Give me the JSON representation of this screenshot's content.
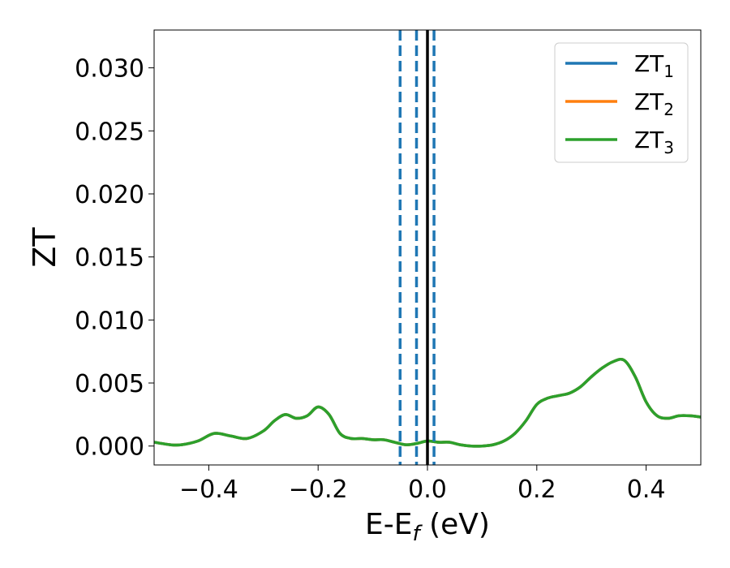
{
  "chart_data": {
    "type": "line",
    "xlabel": "E-E",
    "xlabel_sub": "f",
    "xlabel_unit": " (eV)",
    "ylabel": "ZT",
    "xlim": [
      -0.5,
      0.5
    ],
    "ylim": [
      -0.0015,
      0.033
    ],
    "xticks": [
      -0.4,
      -0.2,
      0.0,
      0.2,
      0.4
    ],
    "xtick_labels": [
      "−0.4",
      "−0.2",
      "0.0",
      "0.2",
      "0.4"
    ],
    "yticks": [
      0.0,
      0.005,
      0.01,
      0.015,
      0.02,
      0.025,
      0.03
    ],
    "ytick_labels": [
      "0.000",
      "0.005",
      "0.010",
      "0.015",
      "0.020",
      "0.025",
      "0.030"
    ],
    "grid": false,
    "legend_position": "top-right",
    "vlines": [
      {
        "x": -0.05,
        "style": "dashed",
        "color": "#1f77b4"
      },
      {
        "x": -0.02,
        "style": "dashed",
        "color": "#1f77b4"
      },
      {
        "x": 0.0,
        "style": "solid",
        "color": "#000000"
      },
      {
        "x": 0.012,
        "style": "dashed",
        "color": "#1f77b4"
      }
    ],
    "series": [
      {
        "name": "ZT",
        "sub": "1",
        "color": "#1f77b4",
        "x": [
          -0.5,
          -0.47,
          -0.45,
          -0.42,
          -0.39,
          -0.36,
          -0.33,
          -0.3,
          -0.28,
          -0.26,
          -0.24,
          -0.22,
          -0.2,
          -0.18,
          -0.16,
          -0.14,
          -0.12,
          -0.1,
          -0.08,
          -0.06,
          -0.04,
          -0.02,
          0.0,
          0.02,
          0.04,
          0.06,
          0.08,
          0.1,
          0.12,
          0.14,
          0.16,
          0.18,
          0.2,
          0.22,
          0.24,
          0.26,
          0.28,
          0.3,
          0.32,
          0.34,
          0.36,
          0.38,
          0.4,
          0.42,
          0.44,
          0.46,
          0.48,
          0.5
        ],
        "y": [
          0.0003,
          0.0001,
          0.0001,
          0.0004,
          0.001,
          0.0008,
          0.0006,
          0.0012,
          0.002,
          0.0025,
          0.0022,
          0.0024,
          0.0031,
          0.0025,
          0.001,
          0.0006,
          0.0006,
          0.0005,
          0.0005,
          0.0003,
          0.0001,
          0.0002,
          0.0004,
          0.0003,
          0.0003,
          0.0001,
          0.0,
          0.0,
          0.0001,
          0.0004,
          0.001,
          0.002,
          0.0033,
          0.0038,
          0.004,
          0.0042,
          0.0047,
          0.0055,
          0.0062,
          0.0067,
          0.0068,
          0.0055,
          0.0035,
          0.0024,
          0.0022,
          0.0024,
          0.0024,
          0.0023
        ]
      },
      {
        "name": "ZT",
        "sub": "2",
        "color": "#ff7f0e",
        "x": [
          -0.5,
          -0.47,
          -0.45,
          -0.42,
          -0.39,
          -0.36,
          -0.33,
          -0.3,
          -0.28,
          -0.26,
          -0.24,
          -0.22,
          -0.2,
          -0.18,
          -0.16,
          -0.14,
          -0.12,
          -0.1,
          -0.08,
          -0.06,
          -0.04,
          -0.02,
          0.0,
          0.02,
          0.04,
          0.06,
          0.08,
          0.1,
          0.12,
          0.14,
          0.16,
          0.18,
          0.2,
          0.22,
          0.24,
          0.26,
          0.28,
          0.3,
          0.32,
          0.34,
          0.36,
          0.38,
          0.4,
          0.42,
          0.44,
          0.46,
          0.48,
          0.5
        ],
        "y": [
          0.0003,
          0.0001,
          0.0001,
          0.0004,
          0.001,
          0.0008,
          0.0006,
          0.0012,
          0.002,
          0.0025,
          0.0022,
          0.0024,
          0.0031,
          0.0025,
          0.001,
          0.0006,
          0.0006,
          0.0005,
          0.0005,
          0.0003,
          0.0001,
          0.0002,
          0.0004,
          0.0003,
          0.0003,
          0.0001,
          0.0,
          0.0,
          0.0001,
          0.0004,
          0.001,
          0.002,
          0.0033,
          0.0038,
          0.004,
          0.0042,
          0.0047,
          0.0055,
          0.0062,
          0.0067,
          0.0068,
          0.0055,
          0.0035,
          0.0024,
          0.0022,
          0.0024,
          0.0024,
          0.0023
        ]
      },
      {
        "name": "ZT",
        "sub": "3",
        "color": "#2ca02c",
        "x": [
          -0.5,
          -0.47,
          -0.45,
          -0.42,
          -0.39,
          -0.36,
          -0.33,
          -0.3,
          -0.28,
          -0.26,
          -0.24,
          -0.22,
          -0.2,
          -0.18,
          -0.16,
          -0.14,
          -0.12,
          -0.1,
          -0.08,
          -0.06,
          -0.04,
          -0.02,
          0.0,
          0.02,
          0.04,
          0.06,
          0.08,
          0.1,
          0.12,
          0.14,
          0.16,
          0.18,
          0.2,
          0.22,
          0.24,
          0.26,
          0.28,
          0.3,
          0.32,
          0.34,
          0.36,
          0.38,
          0.4,
          0.42,
          0.44,
          0.46,
          0.48,
          0.5
        ],
        "y": [
          0.0003,
          0.0001,
          0.0001,
          0.0004,
          0.001,
          0.0008,
          0.0006,
          0.0012,
          0.002,
          0.0025,
          0.0022,
          0.0024,
          0.0031,
          0.0025,
          0.001,
          0.0006,
          0.0006,
          0.0005,
          0.0005,
          0.0003,
          0.0001,
          0.0002,
          0.0004,
          0.0003,
          0.0003,
          0.0001,
          0.0,
          0.0,
          0.0001,
          0.0004,
          0.001,
          0.002,
          0.0033,
          0.0038,
          0.004,
          0.0042,
          0.0047,
          0.0055,
          0.0062,
          0.0067,
          0.0068,
          0.0055,
          0.0035,
          0.0024,
          0.0022,
          0.0024,
          0.0024,
          0.0023
        ]
      }
    ]
  }
}
